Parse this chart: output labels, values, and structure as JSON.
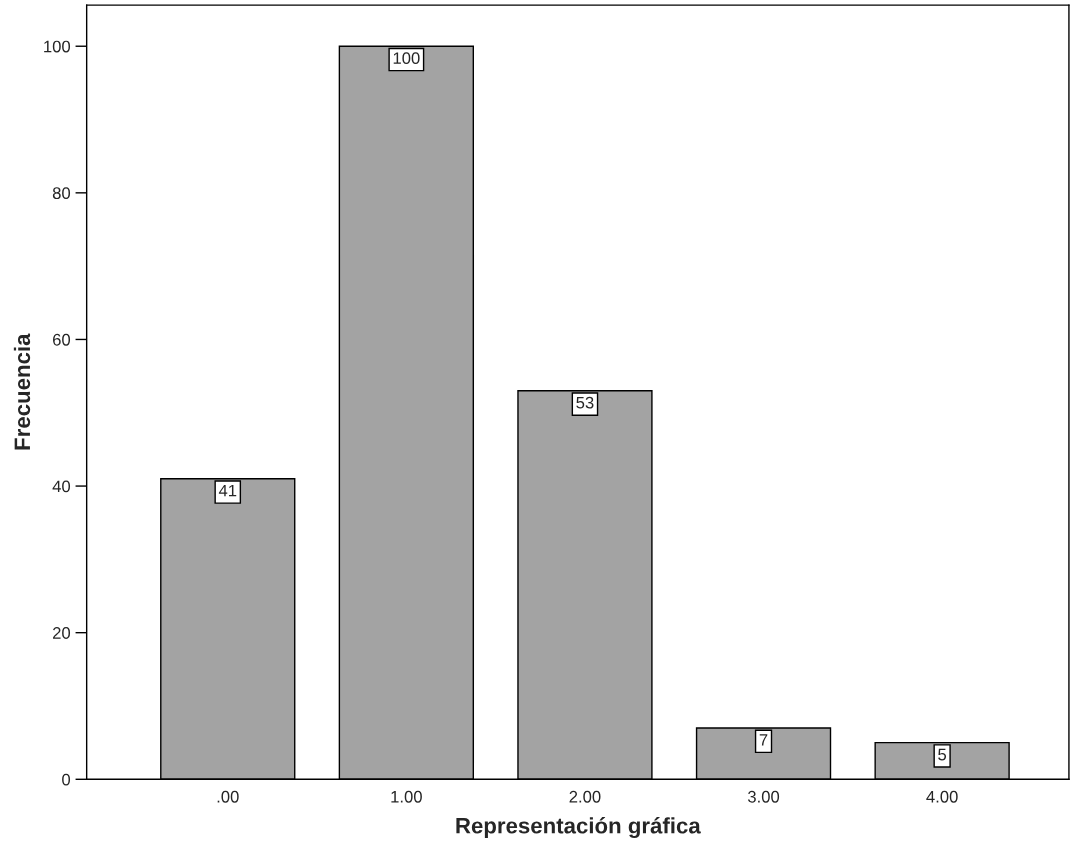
{
  "chart_data": {
    "type": "bar",
    "xlabel": "Representación gráfica",
    "ylabel": "Frecuencia",
    "categories": [
      ".00",
      "1.00",
      "2.00",
      "3.00",
      "4.00"
    ],
    "values": [
      41,
      100,
      53,
      7,
      5
    ],
    "color": "#a3a3a3",
    "ylim": [
      0,
      105.6
    ],
    "yticks": [
      0,
      20,
      40,
      60,
      80,
      100
    ],
    "grid": false,
    "data_labels": true
  }
}
